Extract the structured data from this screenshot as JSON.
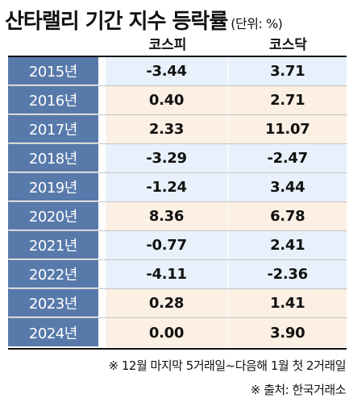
{
  "title": "산타랠리 기간 지수 등락률",
  "unit": "(단위: %)",
  "columns": [
    "코스피",
    "코스닥"
  ],
  "rows": [
    {
      "year": "2015년",
      "kospi": "-3.44",
      "kosdaq": "3.71",
      "tone": "neg"
    },
    {
      "year": "2016년",
      "kospi": "0.40",
      "kosdaq": "2.71",
      "tone": "pos"
    },
    {
      "year": "2017년",
      "kospi": "2.33",
      "kosdaq": "11.07",
      "tone": "pos"
    },
    {
      "year": "2018년",
      "kospi": "-3.29",
      "kosdaq": "-2.47",
      "tone": "neg"
    },
    {
      "year": "2019년",
      "kospi": "-1.24",
      "kosdaq": "3.44",
      "tone": "neg"
    },
    {
      "year": "2020년",
      "kospi": "8.36",
      "kosdaq": "6.78",
      "tone": "pos"
    },
    {
      "year": "2021년",
      "kospi": "-0.77",
      "kosdaq": "2.41",
      "tone": "neg"
    },
    {
      "year": "2022년",
      "kospi": "-4.11",
      "kosdaq": "-2.36",
      "tone": "neg"
    },
    {
      "year": "2023년",
      "kospi": "0.28",
      "kosdaq": "1.41",
      "tone": "pos"
    },
    {
      "year": "2024년",
      "kospi": "0.00",
      "kosdaq": "3.90",
      "tone": "pos"
    }
  ],
  "notes": [
    "※ 12월 마지막 5거래일~다음해 1월 첫 2거래일",
    "※ 출처: 한국거래소"
  ],
  "colors": {
    "year_bg": "#587aab",
    "positive_bg": "#fcefe3",
    "negative_bg": "#e8f1fb"
  }
}
